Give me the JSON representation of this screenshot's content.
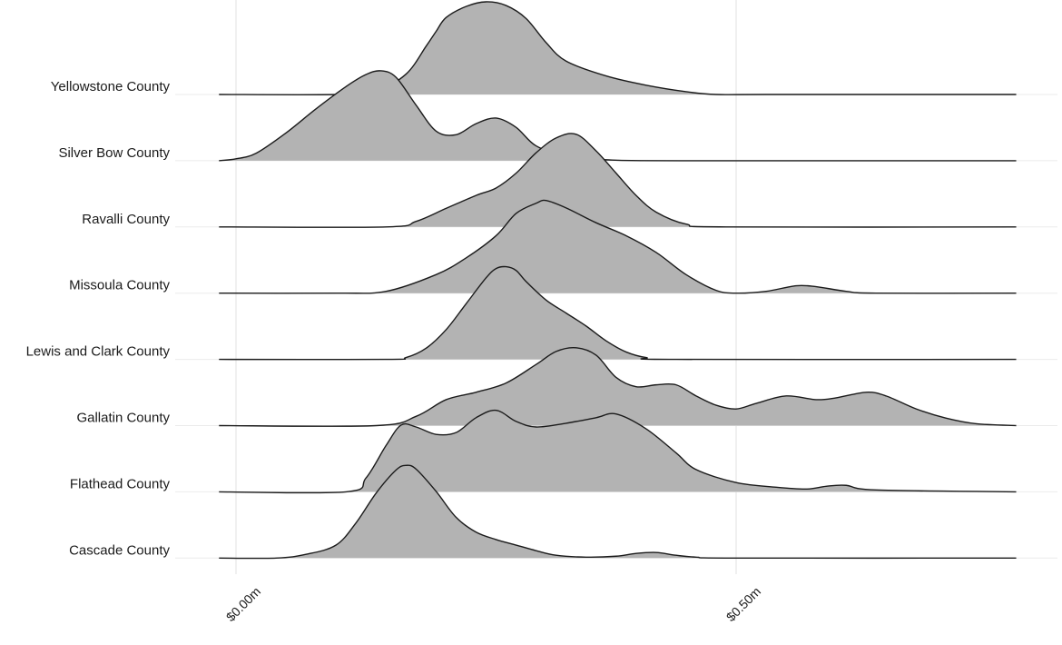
{
  "chart_data": {
    "type": "ridgeline",
    "title": "",
    "xlabel": "",
    "ylabel": "",
    "x_unit": "millions of dollars",
    "xlim": [
      -0.017,
      0.78
    ],
    "x_ticks": [
      {
        "value": 0.0,
        "label": "$0.00m"
      },
      {
        "value": 0.5,
        "label": "$0.50m"
      }
    ],
    "grid": true,
    "fill_color": "#b3b3b3",
    "line_color": "#1a1a1a",
    "series": [
      {
        "name": "Yellowstone County",
        "x": [
          -0.017,
          0.1,
          0.14,
          0.17,
          0.19,
          0.2,
          0.21,
          0.23,
          0.25,
          0.27,
          0.29,
          0.31,
          0.33,
          0.37,
          0.41,
          0.45,
          0.48,
          0.53,
          0.78
        ],
        "y": [
          0.0,
          0.0,
          0.04,
          0.22,
          0.52,
          0.68,
          0.83,
          0.95,
          1.0,
          0.96,
          0.82,
          0.56,
          0.36,
          0.2,
          0.1,
          0.03,
          0.0,
          0.0,
          0.0
        ]
      },
      {
        "name": "Silver Bow County",
        "x": [
          -0.017,
          0.0,
          0.02,
          0.05,
          0.08,
          0.11,
          0.13,
          0.145,
          0.16,
          0.18,
          0.2,
          0.22,
          0.24,
          0.26,
          0.28,
          0.3,
          0.33,
          0.37,
          0.45,
          0.78
        ],
        "y": [
          0.0,
          0.02,
          0.08,
          0.3,
          0.56,
          0.8,
          0.93,
          0.97,
          0.9,
          0.6,
          0.32,
          0.28,
          0.4,
          0.46,
          0.36,
          0.16,
          0.05,
          0.01,
          0.0,
          0.0
        ]
      },
      {
        "name": "Ravalli County",
        "x": [
          -0.017,
          0.15,
          0.18,
          0.21,
          0.24,
          0.26,
          0.28,
          0.3,
          0.32,
          0.34,
          0.36,
          0.38,
          0.4,
          0.42,
          0.45,
          0.49,
          0.78
        ],
        "y": [
          0.0,
          0.0,
          0.06,
          0.2,
          0.34,
          0.42,
          0.58,
          0.8,
          0.96,
          1.0,
          0.82,
          0.58,
          0.34,
          0.16,
          0.03,
          0.0,
          0.0
        ]
      },
      {
        "name": "Missoula County",
        "x": [
          -0.017,
          0.1,
          0.15,
          0.2,
          0.23,
          0.26,
          0.28,
          0.3,
          0.31,
          0.33,
          0.36,
          0.39,
          0.42,
          0.45,
          0.48,
          0.5,
          0.53,
          0.56,
          0.58,
          0.61,
          0.64,
          0.78
        ],
        "y": [
          0.0,
          0.0,
          0.02,
          0.2,
          0.38,
          0.62,
          0.86,
          0.97,
          1.0,
          0.92,
          0.76,
          0.62,
          0.44,
          0.2,
          0.03,
          0.0,
          0.02,
          0.08,
          0.07,
          0.02,
          0.0,
          0.0
        ]
      },
      {
        "name": "Lewis and Clark County",
        "x": [
          -0.017,
          0.15,
          0.17,
          0.19,
          0.21,
          0.23,
          0.25,
          0.26,
          0.27,
          0.28,
          0.29,
          0.31,
          0.33,
          0.35,
          0.37,
          0.39,
          0.41,
          0.44,
          0.78
        ],
        "y": [
          0.0,
          0.0,
          0.02,
          0.12,
          0.32,
          0.6,
          0.88,
          0.98,
          1.0,
          0.96,
          0.84,
          0.64,
          0.5,
          0.36,
          0.2,
          0.08,
          0.02,
          0.0,
          0.0
        ]
      },
      {
        "name": "Gallatin County",
        "x": [
          -0.017,
          0.14,
          0.18,
          0.21,
          0.24,
          0.27,
          0.3,
          0.32,
          0.34,
          0.36,
          0.38,
          0.4,
          0.42,
          0.44,
          0.46,
          0.48,
          0.5,
          0.52,
          0.55,
          0.58,
          0.6,
          0.63,
          0.65,
          0.68,
          0.71,
          0.74,
          0.78
        ],
        "y": [
          0.0,
          0.0,
          0.1,
          0.28,
          0.36,
          0.46,
          0.66,
          0.8,
          0.84,
          0.76,
          0.52,
          0.42,
          0.44,
          0.44,
          0.32,
          0.22,
          0.18,
          0.24,
          0.32,
          0.28,
          0.3,
          0.36,
          0.32,
          0.18,
          0.08,
          0.02,
          0.0
        ]
      },
      {
        "name": "Flathead County",
        "x": [
          -0.017,
          0.11,
          0.13,
          0.15,
          0.165,
          0.18,
          0.2,
          0.22,
          0.24,
          0.26,
          0.28,
          0.3,
          0.33,
          0.36,
          0.38,
          0.41,
          0.44,
          0.46,
          0.5,
          0.54,
          0.57,
          0.59,
          0.61,
          0.64,
          0.78
        ],
        "y": [
          0.0,
          0.0,
          0.15,
          0.5,
          0.72,
          0.7,
          0.62,
          0.64,
          0.8,
          0.88,
          0.76,
          0.7,
          0.74,
          0.8,
          0.84,
          0.68,
          0.42,
          0.24,
          0.1,
          0.05,
          0.03,
          0.06,
          0.07,
          0.02,
          0.0
        ]
      },
      {
        "name": "Cascade County",
        "x": [
          -0.017,
          0.04,
          0.07,
          0.1,
          0.12,
          0.14,
          0.16,
          0.17,
          0.18,
          0.2,
          0.22,
          0.24,
          0.26,
          0.28,
          0.3,
          0.32,
          0.35,
          0.38,
          0.4,
          0.42,
          0.44,
          0.46,
          0.5,
          0.78
        ],
        "y": [
          0.0,
          0.0,
          0.04,
          0.14,
          0.38,
          0.7,
          0.95,
          1.0,
          0.96,
          0.72,
          0.44,
          0.28,
          0.2,
          0.14,
          0.08,
          0.03,
          0.01,
          0.02,
          0.05,
          0.06,
          0.03,
          0.01,
          0.0,
          0.0
        ]
      }
    ]
  }
}
